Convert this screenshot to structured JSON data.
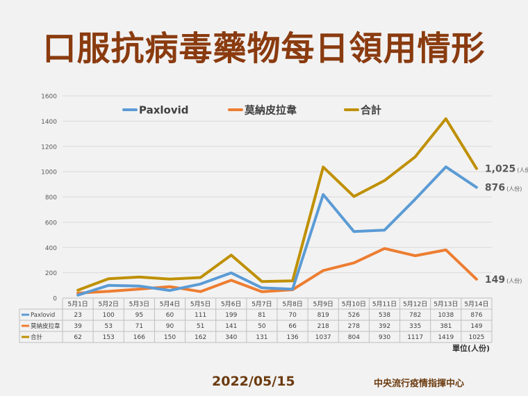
{
  "title": "口服抗病毒藥物每日領用情形",
  "footer": {
    "date": "2022/05/15",
    "source": "中央流行疫情指揮中心",
    "unit": "單位(人份)"
  },
  "chart_data": {
    "type": "line",
    "categories": [
      "5月1日",
      "5月2日",
      "5月3日",
      "5月4日",
      "5月5日",
      "5月6日",
      "5月7日",
      "5月8日",
      "5月9日",
      "5月10日",
      "5月11日",
      "5月12日",
      "5月13日",
      "5月14日"
    ],
    "ylim": [
      0,
      1600
    ],
    "yticks": [
      0,
      200,
      400,
      600,
      800,
      1000,
      1200,
      1400,
      1600
    ],
    "grid": true,
    "legend_position": "top",
    "series": [
      {
        "name": "Paxlovid",
        "color": "#5b9bd5",
        "values": [
          23,
          100,
          95,
          60,
          111,
          199,
          81,
          70,
          819,
          526,
          538,
          782,
          1038,
          876
        ]
      },
      {
        "name": "莫納皮拉韋",
        "color": "#ed7d31",
        "values": [
          39,
          53,
          71,
          90,
          51,
          141,
          50,
          66,
          218,
          278,
          392,
          335,
          381,
          149
        ]
      },
      {
        "name": "合計",
        "color": "#bf9000",
        "values": [
          62,
          153,
          166,
          150,
          162,
          340,
          131,
          136,
          1037,
          804,
          930,
          1117,
          1419,
          1025
        ]
      }
    ],
    "end_labels": [
      {
        "series": "合計",
        "value": "1,025",
        "unit": "(人份)"
      },
      {
        "series": "Paxlovid",
        "value": "876",
        "unit": "(人份)"
      },
      {
        "series": "莫納皮拉韋",
        "value": "149",
        "unit": "(人份)"
      }
    ]
  }
}
